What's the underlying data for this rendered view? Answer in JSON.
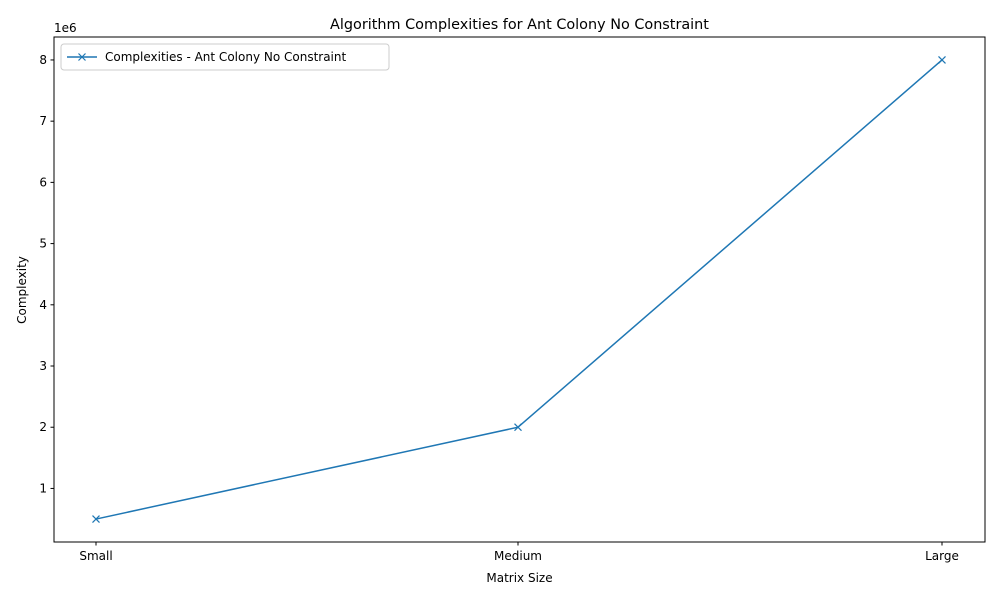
{
  "chart_data": {
    "type": "line",
    "title": "Algorithm Complexities for Ant Colony No Constraint",
    "xlabel": "Matrix Size",
    "ylabel": "Complexity",
    "y_offset_label": "1e6",
    "categories": [
      "Small",
      "Medium",
      "Large"
    ],
    "series": [
      {
        "name": "Complexities - Ant Colony No Constraint",
        "values": [
          500000,
          2000000,
          8000000
        ],
        "color": "#1f77b4",
        "marker": "x"
      }
    ],
    "ylim": [
      125000,
      8375000
    ],
    "y_ticks": [
      1000000,
      2000000,
      3000000,
      4000000,
      5000000,
      6000000,
      7000000,
      8000000
    ],
    "y_tick_labels": [
      "1",
      "2",
      "3",
      "4",
      "5",
      "6",
      "7",
      "8"
    ],
    "grid": false,
    "legend_position": "upper-left"
  }
}
